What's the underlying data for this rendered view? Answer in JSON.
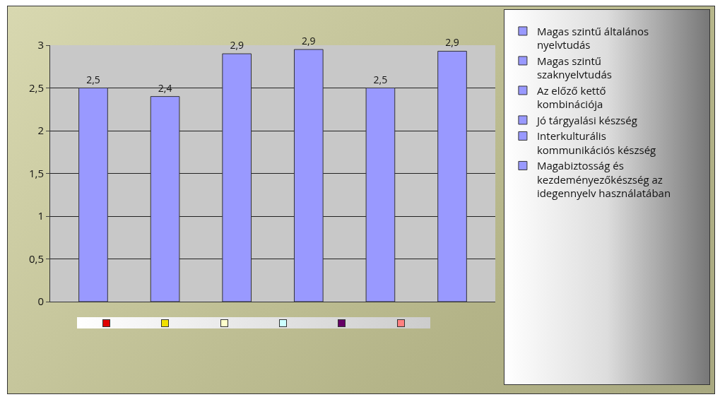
{
  "chart_data": {
    "type": "bar",
    "categories": [
      null,
      null,
      null,
      null,
      null,
      null
    ],
    "series": [
      {
        "name": "Magas szintű általános nyelvtudás",
        "color": "#9999ff",
        "values": [
          2.5,
          null,
          null,
          null,
          null,
          null
        ],
        "value_labels": [
          "2,5",
          null,
          null,
          null,
          null,
          null
        ]
      },
      {
        "name": "Magas szintű szaknyelvtudás",
        "color": "#9999ff",
        "values": [
          null,
          2.4,
          null,
          null,
          null,
          null
        ],
        "value_labels": [
          null,
          "2,4",
          null,
          null,
          null,
          null
        ]
      },
      {
        "name": "Az előző kettő kombinációja",
        "color": "#9999ff",
        "values": [
          null,
          null,
          2.9,
          null,
          null,
          null
        ],
        "value_labels": [
          null,
          null,
          "2,9",
          null,
          null,
          null
        ]
      },
      {
        "name": "Jó tárgyalási készség",
        "color": "#9999ff",
        "values": [
          null,
          null,
          null,
          2.95,
          null,
          null
        ],
        "value_labels": [
          null,
          null,
          null,
          "2,9",
          null,
          null
        ]
      },
      {
        "name": "Interkulturális kommunikációs készség",
        "color": "#9999ff",
        "values": [
          null,
          null,
          null,
          null,
          2.5,
          null
        ],
        "value_labels": [
          null,
          null,
          null,
          null,
          "2,5",
          null
        ]
      },
      {
        "name": "Magabiztosság és kezdeményezőkészség az idegennyelv használatában",
        "color": "#9999ff",
        "values": [
          null,
          null,
          null,
          null,
          null,
          2.93
        ],
        "value_labels": [
          null,
          null,
          null,
          null,
          null,
          "2,9"
        ]
      }
    ],
    "ylim": [
      0,
      3
    ],
    "yticks": [
      0,
      {
        "value": 0.5,
        "label": "0,5"
      },
      1,
      {
        "value": 1.5,
        "label": "1,5"
      },
      2,
      {
        "value": 2.5,
        "label": "2,5"
      },
      3
    ],
    "grid": "y",
    "legend": "right",
    "tick_labels": "y"
  }
}
